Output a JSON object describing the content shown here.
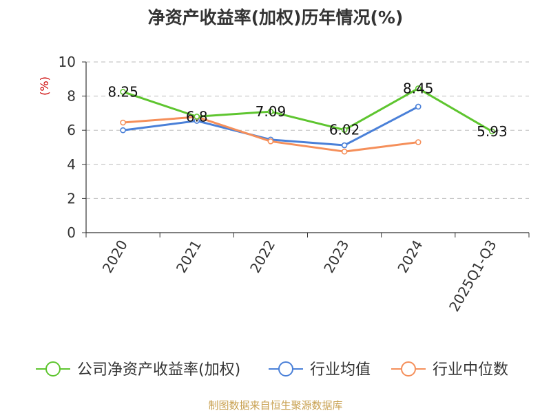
{
  "chart_data": {
    "type": "line",
    "title": "净资产收益率(加权)历年情况(%)",
    "ylabel": "(%)",
    "xlabel": "",
    "categories": [
      "2020",
      "2021",
      "2022",
      "2023",
      "2024",
      "2025Q1-Q3"
    ],
    "ylim": [
      0,
      10
    ],
    "yticks": [
      0,
      2,
      4,
      6,
      8,
      10
    ],
    "grid": true,
    "legend_position": "bottom",
    "series": [
      {
        "name": "公司净资产收益率(加权)",
        "color": "#5ec52f",
        "values": [
          8.25,
          6.8,
          7.09,
          6.02,
          8.45,
          5.93
        ],
        "labels": [
          "8.25",
          "6.8",
          "7.09",
          "6.02",
          "8.45",
          "5.93"
        ]
      },
      {
        "name": "行业均值",
        "color": "#4a80d8",
        "values": [
          6.0,
          6.55,
          5.45,
          5.12,
          7.38,
          null
        ]
      },
      {
        "name": "行业中位数",
        "color": "#f58f5a",
        "values": [
          6.45,
          6.78,
          5.35,
          4.75,
          5.3,
          null
        ]
      }
    ]
  },
  "source": "制图数据来自恒生聚源数据库"
}
